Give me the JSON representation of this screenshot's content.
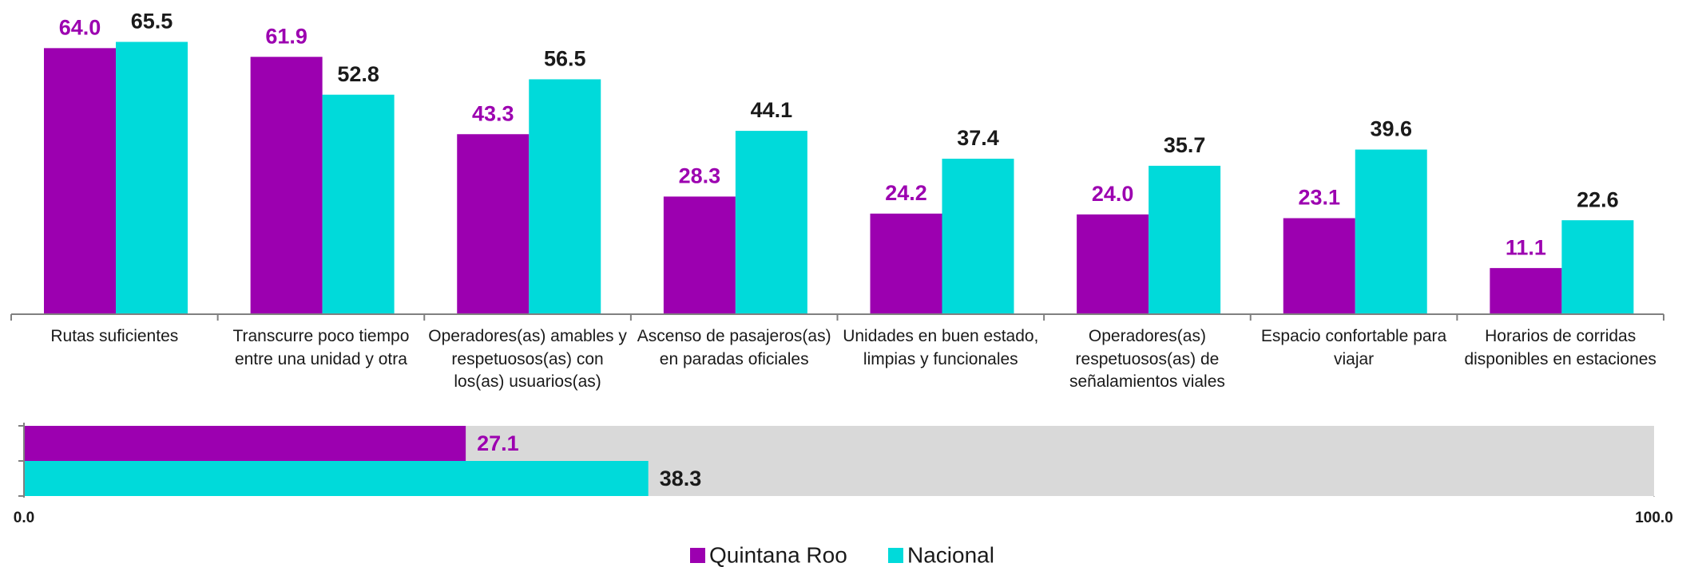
{
  "chart_data": [
    {
      "type": "bar",
      "categories": [
        "Rutas suficientes",
        "Transcurre poco tiempo entre una unidad y otra",
        "Operadores(as) amables y respetuosos(as) con los(as) usuarios(as)",
        "Ascenso de pasajeros(as) en paradas oficiales",
        "Unidades en buen estado, limpias y funcionales",
        "Operadores(as) respetuosos(as) de señalamientos viales",
        "Espacio confortable para viajar",
        "Horarios de corridas disponibles en estaciones"
      ],
      "series": [
        {
          "name": "Quintana Roo",
          "color": "#9c00b0",
          "label_color": "#9c00b0",
          "values": [
            64.0,
            61.9,
            43.3,
            28.3,
            24.2,
            24.0,
            23.1,
            11.1
          ],
          "value_labels": [
            "64.0",
            "61.9",
            "43.3",
            "28.3",
            "24.2",
            "24.0",
            "23.1",
            "11.1"
          ]
        },
        {
          "name": "Nacional",
          "color": "#00dada",
          "label_color": "#1a1a1a",
          "values": [
            65.5,
            52.8,
            56.5,
            44.1,
            37.4,
            35.7,
            39.6,
            22.6
          ],
          "value_labels": [
            "65.5",
            "52.8",
            "56.5",
            "44.1",
            "37.4",
            "35.7",
            "39.6",
            "22.6"
          ]
        }
      ],
      "ylim": [
        0,
        75
      ]
    },
    {
      "type": "hbar",
      "series": [
        {
          "color": "#9c00b0",
          "label_color": "#9c00b0",
          "values": [
            27.1
          ],
          "value_labels": [
            "27.1"
          ]
        },
        {
          "color": "#00dada",
          "label_color": "#1a1a1a",
          "values": [
            38.3
          ],
          "value_labels": [
            "38.3"
          ]
        }
      ],
      "xlim": [
        0,
        100
      ],
      "xticks": [
        {
          "value": 0,
          "label": "0.0"
        },
        {
          "value": 100,
          "label": "100.0"
        }
      ],
      "background": "#d9d9d9"
    }
  ]
}
